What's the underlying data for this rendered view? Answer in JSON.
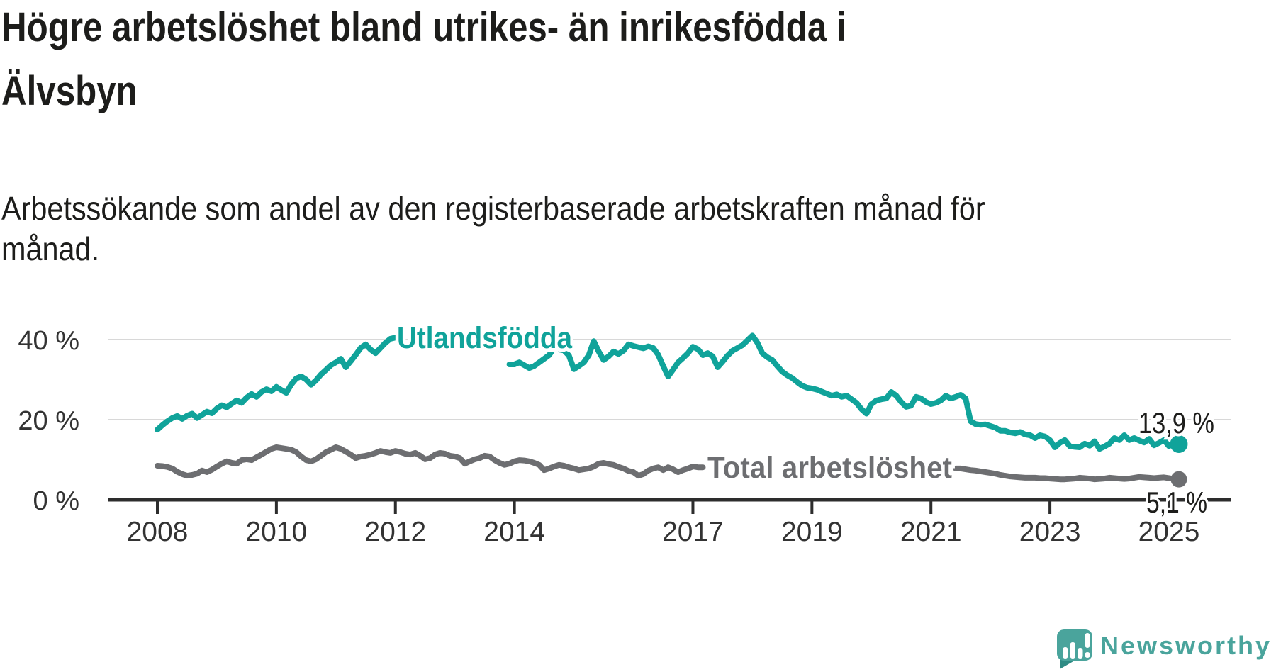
{
  "title": {
    "lines": [
      "Högre arbetslöshet bland utrikes- än inrikesfödda i",
      "Älvsbyn"
    ]
  },
  "subtitle": {
    "lines": [
      "Arbetssökande som andel av den registerbaserade arbetskraften månad för",
      "månad."
    ]
  },
  "logo": {
    "icon": "newsworthy-speech-bubble-chart-icon",
    "text": "Newsworthy",
    "color": "#4aa49c",
    "tail_color": "#2e8b84"
  },
  "colors": {
    "foreign_born_line": "#10a39a",
    "total_line": "#6d6e71",
    "axis": "#2d2d2d",
    "grid": "#d8d8d8",
    "tick_label": "#333333",
    "end_label": "#1d1d1b",
    "title_text": "#1d1d1b"
  },
  "chart_data": {
    "type": "line",
    "frequency": "monthly",
    "x_start": "2008-01",
    "x_end": "2025-03",
    "x_ticks": [
      2008,
      2010,
      2012,
      2014,
      2017,
      2019,
      2021,
      2023,
      2025
    ],
    "y_ticks": [
      {
        "value": 0,
        "label": "0 %"
      },
      {
        "value": 20,
        "label": "20 %"
      },
      {
        "value": 40,
        "label": "40 %"
      }
    ],
    "ylim": [
      0,
      45
    ],
    "grid": "horizontal",
    "legend_position": "inline-labels",
    "series": [
      {
        "name": "Utlandsfödda",
        "color": "#10a39a",
        "end_label": "13,9 %",
        "last_value": 13.9,
        "label_hides_line_months": [
          49,
          70
        ],
        "values": [
          17.5,
          18.6,
          19.6,
          20.4,
          20.9,
          20.2,
          21.0,
          21.5,
          20.4,
          21.2,
          22.0,
          21.6,
          22.8,
          23.6,
          23.1,
          24.0,
          24.8,
          24.2,
          25.5,
          26.4,
          25.7,
          26.9,
          27.6,
          27.1,
          28.2,
          27.4,
          26.7,
          28.8,
          30.3,
          30.8,
          30.0,
          28.7,
          29.8,
          31.3,
          32.4,
          33.6,
          34.3,
          35.2,
          33.1,
          34.6,
          36.2,
          37.9,
          38.8,
          37.5,
          36.6,
          37.9,
          39.2,
          40.2,
          40.5,
          39.6,
          38.8,
          39.4,
          38.0,
          37.3,
          38.1,
          38.9,
          38.0,
          37.3,
          36.9,
          37.6,
          37.1,
          36.5,
          35.9,
          36.6,
          35.3,
          34.9,
          35.6,
          36.3,
          35.1,
          34.5,
          34.1,
          33.8,
          33.8,
          34.3,
          33.6,
          32.9,
          33.4,
          34.3,
          35.2,
          36.1,
          37.9,
          37.5,
          37.3,
          36.0,
          32.6,
          33.4,
          34.3,
          36.1,
          39.6,
          37.0,
          34.9,
          35.8,
          37.0,
          36.4,
          37.2,
          38.8,
          38.4,
          38.1,
          37.8,
          38.3,
          37.9,
          36.2,
          33.4,
          30.8,
          32.5,
          34.3,
          35.4,
          36.6,
          38.2,
          37.6,
          36.1,
          36.6,
          35.8,
          33.1,
          34.5,
          36.0,
          37.2,
          37.9,
          38.6,
          39.8,
          41.0,
          39.2,
          36.6,
          35.6,
          34.9,
          33.4,
          32.0,
          31.1,
          30.4,
          29.4,
          28.5,
          28.0,
          27.8,
          27.5,
          27.0,
          26.5,
          26.0,
          26.3,
          25.7,
          26.0,
          25.1,
          24.2,
          22.6,
          21.5,
          23.9,
          24.8,
          25.1,
          25.3,
          26.9,
          26.0,
          24.4,
          23.2,
          23.5,
          25.7,
          25.3,
          24.4,
          23.9,
          24.2,
          24.8,
          26.0,
          25.3,
          25.7,
          26.2,
          25.3,
          19.6,
          18.9,
          18.7,
          18.8,
          18.4,
          18.0,
          17.2,
          17.2,
          16.8,
          16.6,
          16.9,
          16.3,
          16.1,
          15.4,
          16.1,
          15.8,
          14.9,
          13.1,
          14.2,
          14.9,
          13.4,
          13.2,
          13.1,
          14.0,
          13.5,
          14.6,
          12.7,
          13.3,
          14.0,
          15.4,
          14.9,
          16.1,
          14.9,
          15.4,
          14.8,
          14.3,
          15.2,
          13.6,
          14.2,
          14.9,
          13.4,
          14.0,
          13.9
        ]
      },
      {
        "name": "Total arbetslöshet",
        "color": "#6d6e71",
        "end_label": "5,1 %",
        "last_value": 5.1,
        "label_hides_line_months": [
          111,
          160
        ],
        "values": [
          8.5,
          8.4,
          8.2,
          7.8,
          7.0,
          6.4,
          6.0,
          6.2,
          6.5,
          7.3,
          6.9,
          7.5,
          8.3,
          9.0,
          9.6,
          9.2,
          9.0,
          9.9,
          10.1,
          9.9,
          10.6,
          11.3,
          12.0,
          12.7,
          13.1,
          12.9,
          12.7,
          12.5,
          11.9,
          10.8,
          9.9,
          9.6,
          10.1,
          11.0,
          11.9,
          12.5,
          13.1,
          12.7,
          12.0,
          11.3,
          10.4,
          10.8,
          11.0,
          11.3,
          11.7,
          12.2,
          11.9,
          11.7,
          12.2,
          11.9,
          11.5,
          11.3,
          11.7,
          11.0,
          10.1,
          10.4,
          11.3,
          11.7,
          11.5,
          11.0,
          10.8,
          10.4,
          9.0,
          9.6,
          10.1,
          10.4,
          11.0,
          10.8,
          9.9,
          9.2,
          8.7,
          9.0,
          9.6,
          9.9,
          9.8,
          9.6,
          9.2,
          8.7,
          7.4,
          7.8,
          8.3,
          8.7,
          8.5,
          8.1,
          7.8,
          7.4,
          7.6,
          7.8,
          8.3,
          9.0,
          9.2,
          8.9,
          8.7,
          8.2,
          7.8,
          7.2,
          6.9,
          6.0,
          6.4,
          7.3,
          7.8,
          8.1,
          7.4,
          8.1,
          7.6,
          6.9,
          7.4,
          7.8,
          8.3,
          8.1,
          8.1,
          7.8,
          7.5,
          7.3,
          7.0,
          7.2,
          7.5,
          7.7,
          7.9,
          8.0,
          7.8,
          7.6,
          7.4,
          7.2,
          7.0,
          6.8,
          6.7,
          6.8,
          7.0,
          7.2,
          7.3,
          7.4,
          7.5,
          7.4,
          7.3,
          7.2,
          7.0,
          6.9,
          7.0,
          7.1,
          7.2,
          7.3,
          7.4,
          7.5,
          7.6,
          7.5,
          7.8,
          8.2,
          8.5,
          8.6,
          8.5,
          8.4,
          8.2,
          8.0,
          7.9,
          7.8,
          7.9,
          7.8,
          7.7,
          7.8,
          7.8,
          7.8,
          7.8,
          7.6,
          7.4,
          7.3,
          7.1,
          6.9,
          6.7,
          6.5,
          6.2,
          6.0,
          5.8,
          5.7,
          5.6,
          5.5,
          5.5,
          5.5,
          5.4,
          5.4,
          5.3,
          5.2,
          5.1,
          5.1,
          5.2,
          5.3,
          5.5,
          5.4,
          5.3,
          5.1,
          5.2,
          5.3,
          5.5,
          5.4,
          5.3,
          5.2,
          5.3,
          5.5,
          5.7,
          5.6,
          5.5,
          5.4,
          5.5,
          5.6,
          5.4,
          5.2,
          5.1
        ]
      }
    ]
  }
}
